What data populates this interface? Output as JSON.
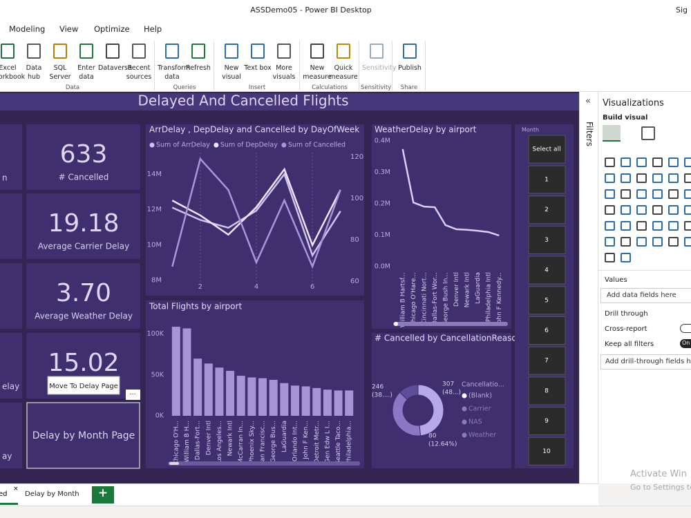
{
  "window": {
    "title": "ASSDemo05 - Power BI Desktop",
    "user": "Sig"
  },
  "menu": [
    "Modeling",
    "View",
    "Optimize",
    "Help"
  ],
  "ribbon": [
    {
      "group": "Data",
      "items": [
        "Excel workbook",
        "Data hub",
        "SQL Server",
        "Enter data",
        "Dataverse",
        "Recent sources"
      ]
    },
    {
      "group": "Queries",
      "items": [
        "Transform data",
        "Refresh"
      ]
    },
    {
      "group": "Insert",
      "items": [
        "New visual",
        "Text box",
        "More visuals"
      ]
    },
    {
      "group": "Calculations",
      "items": [
        "New measure",
        "Quick measure"
      ]
    },
    {
      "group": "Sensitivity",
      "items": [
        "Sensitivity"
      ]
    },
    {
      "group": "Share",
      "items": [
        "Publish"
      ]
    }
  ],
  "report": {
    "title": "Delayed And Cancelled Flights",
    "partial_cards": [
      "n",
      null,
      null,
      "elay",
      "ay"
    ],
    "cards": [
      {
        "value": "633",
        "label": "# Cancelled"
      },
      {
        "value": "19.18",
        "label": "Average Carrier Delay"
      },
      {
        "value": "3.70",
        "label": "Average Weather Delay"
      },
      {
        "value": "15.02"
      }
    ],
    "tooltip": "Move To Delay Page",
    "button": "Delay by Month Page",
    "more": "···"
  },
  "chart_data": [
    {
      "type": "line",
      "title": "ArrDelay , DepDelay and Cancelled by DayOfWeek",
      "x": [
        1,
        2,
        3,
        4,
        5,
        6,
        7
      ],
      "xlim": [
        0.5,
        7.5
      ],
      "xticks": [
        2,
        4,
        6
      ],
      "ylim": [
        7600000,
        15200000
      ],
      "yticks": [
        {
          "value": 8000000,
          "label": "8M"
        },
        {
          "value": 10000000,
          "label": "10M"
        },
        {
          "value": 12000000,
          "label": "12M"
        },
        {
          "value": 14000000,
          "label": "14M"
        }
      ],
      "y2lim": [
        57,
        122
      ],
      "y2ticks": [
        60,
        80,
        100,
        120
      ],
      "series": [
        {
          "name": "Sum of ArrDelay",
          "color": "#cfc3f4",
          "values": [
            12100000,
            11400000,
            10960000,
            11930000,
            13990000,
            9400000,
            11900000
          ]
        },
        {
          "name": "Sum of DepDelay",
          "color": "#ece6ff",
          "values": [
            12500000,
            11660000,
            10570000,
            12120000,
            14260000,
            9980000,
            13100000
          ]
        },
        {
          "name": "Sum of Cancelled",
          "color": "#a796dc",
          "axis": "y2",
          "values": [
            67,
            119,
            104,
            69,
            99,
            67,
            104
          ]
        }
      ]
    },
    {
      "type": "line",
      "title": "WeatherDelay by airport",
      "categories": [
        "William B Hartsf...",
        "Chicago O'Hare...",
        "Cincinnati Nort...",
        "Dallas-Fort Wor...",
        "George Bush In...",
        "Denver Intl",
        "Newark Intl",
        "LaGuardia",
        "Philadelphia Intl",
        "John F Kennedy..."
      ],
      "values": [
        374000,
        204000,
        191000,
        189000,
        132000,
        119000,
        117000,
        114000,
        110000,
        99000
      ],
      "color": "#d9cff7",
      "ylim": [
        0,
        420000
      ],
      "yticks": [
        {
          "value": 0,
          "label": "0.0M"
        },
        {
          "value": 100000,
          "label": "0.1M"
        },
        {
          "value": 200000,
          "label": "0.2M"
        },
        {
          "value": 300000,
          "label": "0.3M"
        },
        {
          "value": 400000,
          "label": "0.4M"
        }
      ]
    },
    {
      "type": "bar",
      "title": "Total Flights by airport",
      "categories": [
        "Chicago O'H...",
        "William B H...",
        "Dallas-Fort...",
        "Denver Intl",
        "Los Angeles...",
        "Newark Intl",
        "McCarran In...",
        "Phoenix Sky...",
        "San Francisc...",
        "George Bus...",
        "LaGuardia",
        "Orlando Int...",
        "John F Ken...",
        "Detroit Metr...",
        "Gen Edw L I...",
        "Seattle Taco...",
        "Philadelphia..."
      ],
      "values": [
        109000,
        107000,
        70000,
        64000,
        59000,
        55000,
        49000,
        47000,
        46000,
        44000,
        40000,
        37000,
        36000,
        34000,
        32000,
        31000,
        31000
      ],
      "color": "#a595d8",
      "ylim": [
        0,
        115000
      ],
      "yticks": [
        {
          "value": 0,
          "label": "0K"
        },
        {
          "value": 50000,
          "label": "50K"
        },
        {
          "value": 100000,
          "label": "100K"
        }
      ]
    },
    {
      "type": "pie",
      "title": "# Cancelled by CancellationReason",
      "values": [
        307,
        246,
        80
      ],
      "percent_labels": [
        "(48...)",
        "(38....)",
        "(12.64%)"
      ],
      "colors": [
        "#b6a8ea",
        "#8a78c6",
        "#5d4d9a"
      ],
      "legend": {
        "title": "Cancellatio...",
        "items": [
          "(Blank)",
          "Carrier",
          "NAS",
          "Weather"
        ]
      }
    }
  ],
  "slicer": {
    "title": "Month",
    "select_all": "Select all",
    "items": [
      1,
      2,
      3,
      4,
      5,
      6,
      7,
      8,
      9,
      10
    ]
  },
  "panes": {
    "filters": "Filters",
    "visualizations": "Visualizations",
    "build_visual": "Build visual",
    "values": "Values",
    "add_data": "Add data fields here",
    "drill_through": "Drill through",
    "cross_report": "Cross-report",
    "keep_filters": "Keep all filters",
    "on": "On",
    "add_drill": "Add drill-through fields here"
  },
  "watermark": [
    "Activate Win",
    "Go to Settings to"
  ],
  "tabs": [
    "ed",
    "Delay by Month"
  ],
  "add_tab": "+"
}
